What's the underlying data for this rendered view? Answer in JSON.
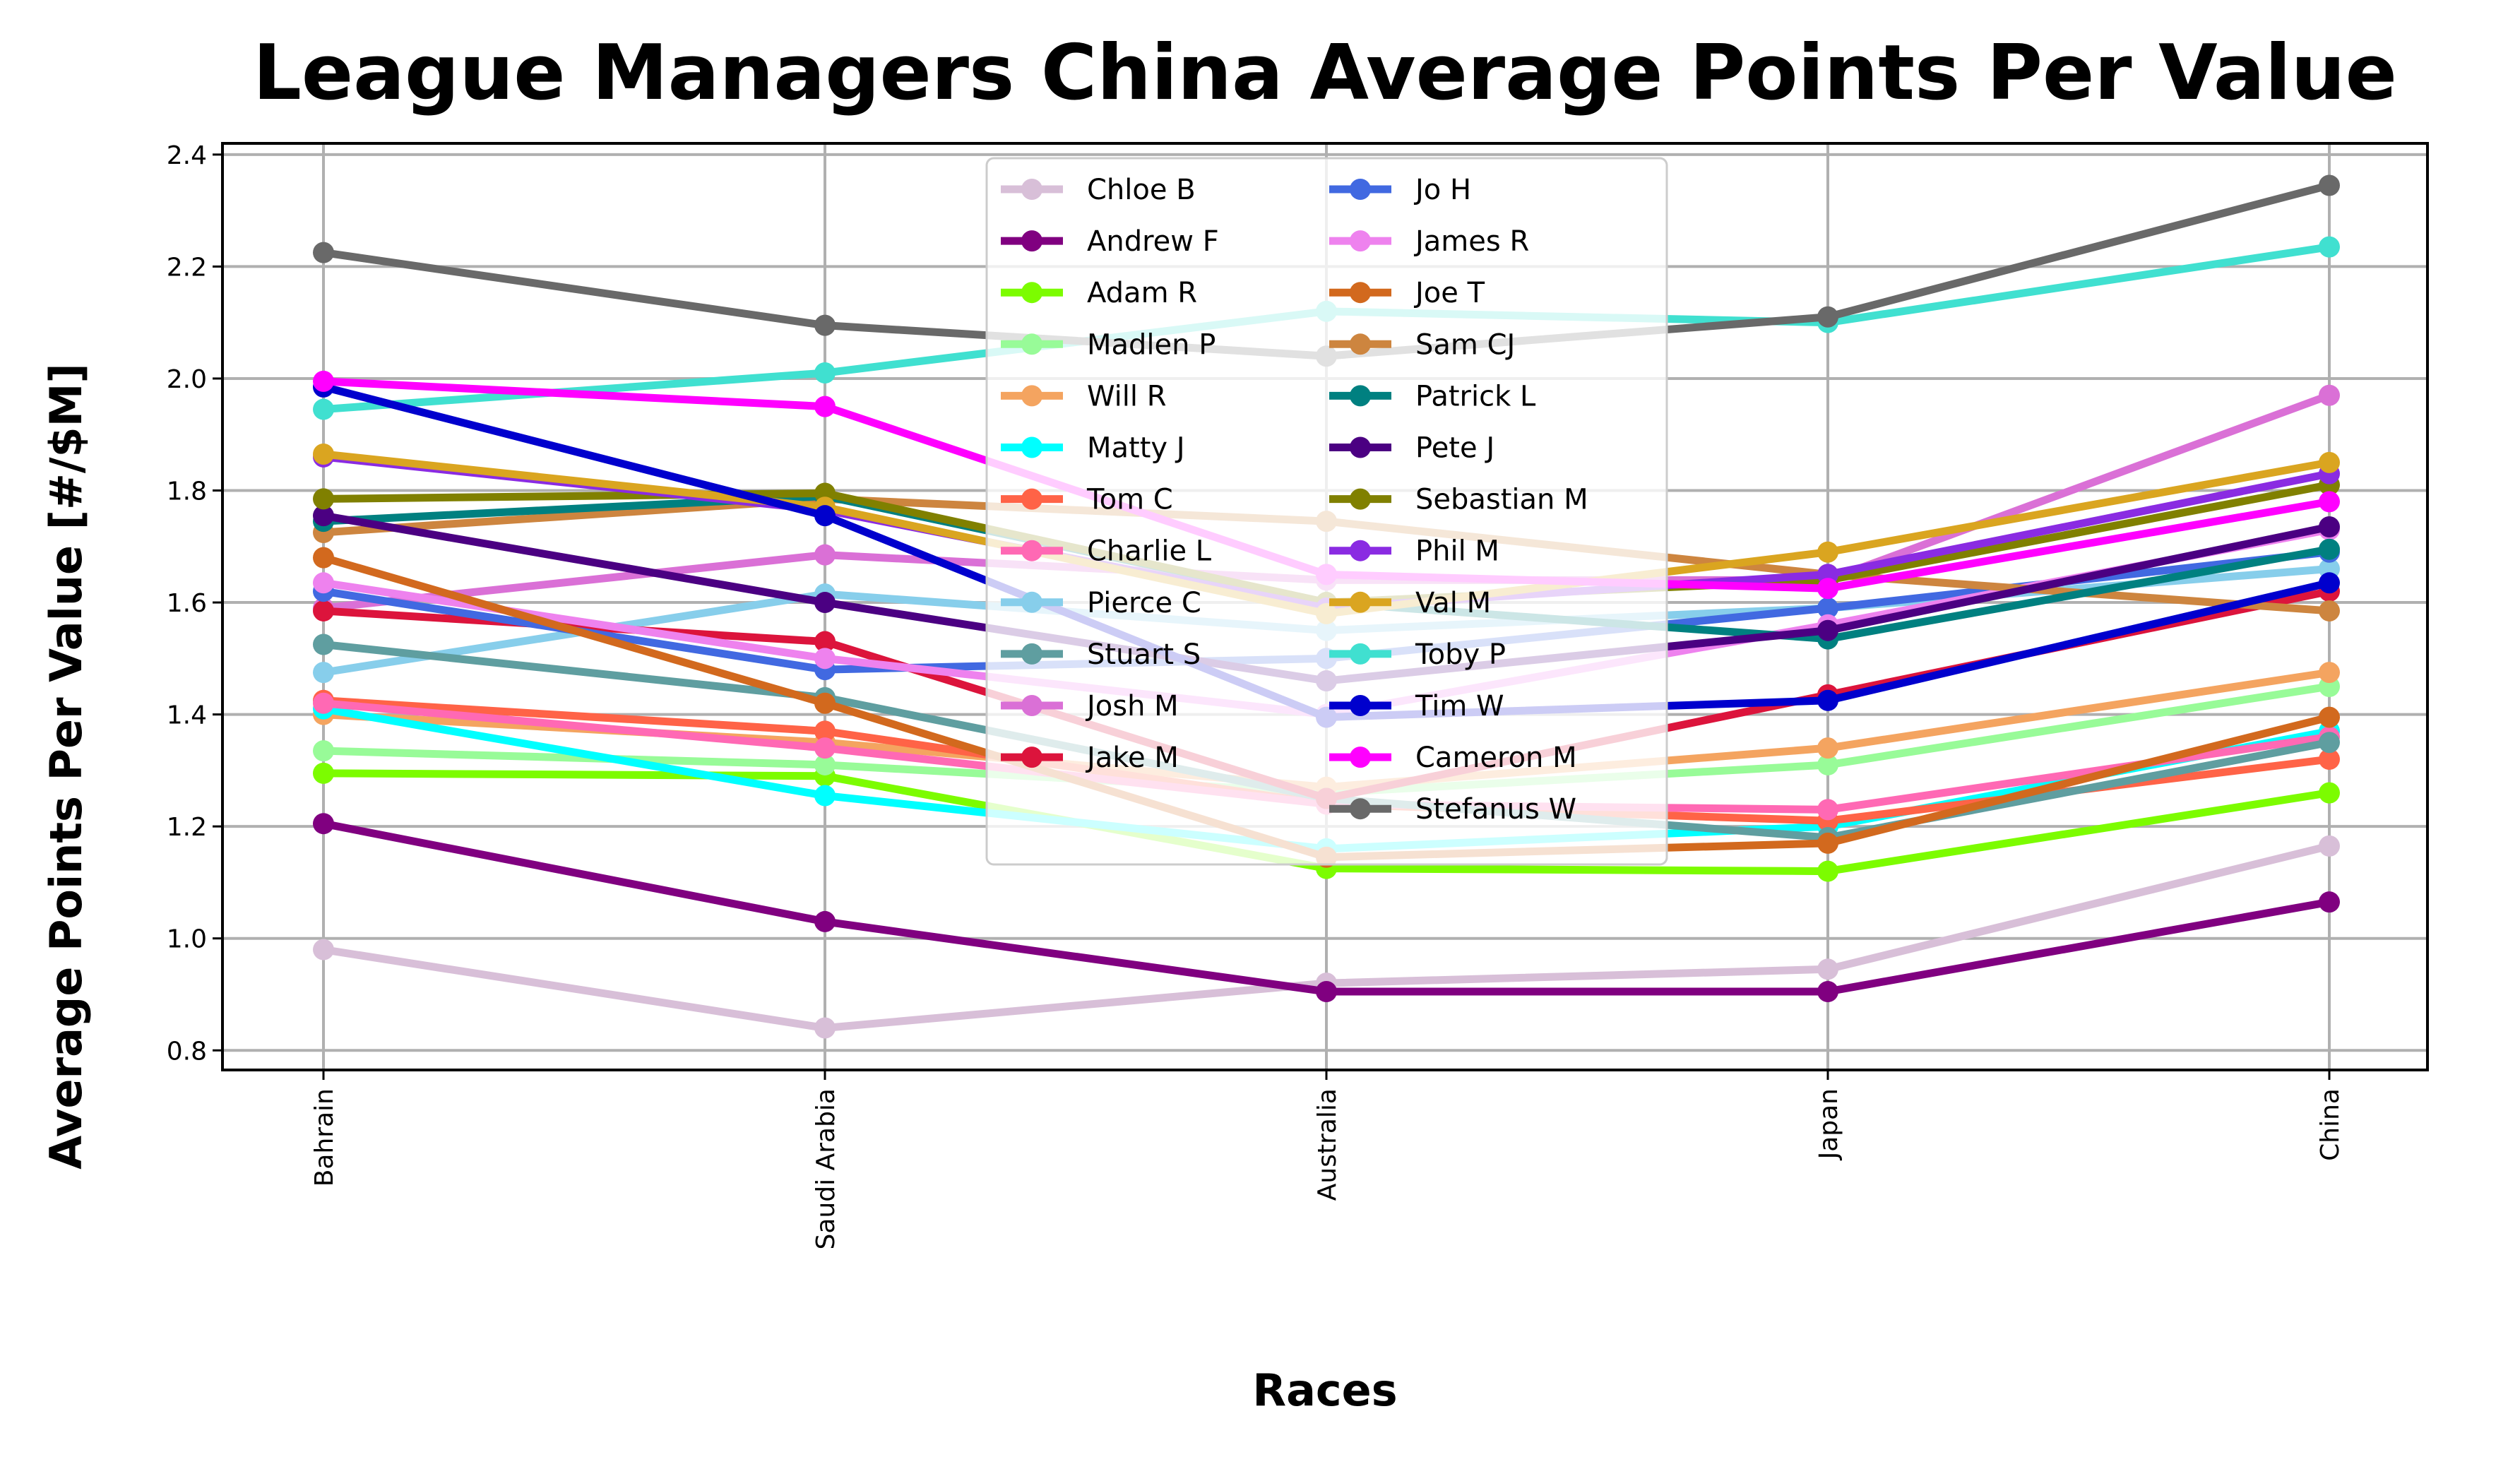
{
  "chart_data": {
    "type": "line",
    "title": "League Managers China Average Points Per Value",
    "xlabel": "Races",
    "ylabel": "Average Points Per Value [#/$M]",
    "categories": [
      "Bahrain",
      "Saudi Arabia",
      "Australia",
      "Japan",
      "China"
    ],
    "ylim": [
      0.765,
      2.42
    ],
    "yticks": [
      0.8,
      1.0,
      1.2,
      1.4,
      1.6,
      1.8,
      2.0,
      2.2,
      2.4
    ],
    "grid": true,
    "legend_position": "upper-center",
    "series": [
      {
        "name": "Chloe B",
        "color": "#d8bfd8",
        "values": [
          0.98,
          0.84,
          0.92,
          0.945,
          1.165
        ]
      },
      {
        "name": "Andrew F",
        "color": "#800080",
        "values": [
          1.205,
          1.03,
          0.905,
          0.905,
          1.065
        ]
      },
      {
        "name": "Adam R",
        "color": "#7cfc00",
        "values": [
          1.295,
          1.29,
          1.125,
          1.12,
          1.26
        ]
      },
      {
        "name": "Madlen P",
        "color": "#98fb98",
        "values": [
          1.335,
          1.31,
          1.26,
          1.31,
          1.45
        ]
      },
      {
        "name": "Will R",
        "color": "#f4a460",
        "values": [
          1.4,
          1.35,
          1.27,
          1.34,
          1.475
        ]
      },
      {
        "name": "Matty J",
        "color": "#00ffff",
        "values": [
          1.41,
          1.255,
          1.16,
          1.2,
          1.37
        ]
      },
      {
        "name": "Tom C",
        "color": "#ff6347",
        "values": [
          1.425,
          1.37,
          1.24,
          1.21,
          1.32
        ]
      },
      {
        "name": "Charlie L",
        "color": "#ff69b4",
        "values": [
          1.42,
          1.34,
          1.24,
          1.23,
          1.36
        ]
      },
      {
        "name": "Pierce C",
        "color": "#87ceeb",
        "values": [
          1.475,
          1.615,
          1.55,
          1.59,
          1.66
        ]
      },
      {
        "name": "Stuart S",
        "color": "#5f9ea0",
        "values": [
          1.525,
          1.43,
          1.25,
          1.18,
          1.35
        ]
      },
      {
        "name": "Josh M",
        "color": "#da70d6",
        "values": [
          1.59,
          1.685,
          1.64,
          1.64,
          1.97
        ]
      },
      {
        "name": "Jake M",
        "color": "#dc143c",
        "values": [
          1.585,
          1.53,
          1.25,
          1.435,
          1.62
        ]
      },
      {
        "name": "Jo H",
        "color": "#4169e1",
        "values": [
          1.62,
          1.48,
          1.5,
          1.59,
          1.69
        ]
      },
      {
        "name": "James R",
        "color": "#ee82ee",
        "values": [
          1.635,
          1.5,
          1.4,
          1.56,
          1.73
        ]
      },
      {
        "name": "Joe T",
        "color": "#d2691e",
        "values": [
          1.68,
          1.42,
          1.145,
          1.17,
          1.395
        ]
      },
      {
        "name": "Sam CJ",
        "color": "#cd853f",
        "values": [
          1.725,
          1.785,
          1.745,
          1.65,
          1.585
        ]
      },
      {
        "name": "Patrick L",
        "color": "#008080",
        "values": [
          1.745,
          1.79,
          1.6,
          1.535,
          1.695
        ]
      },
      {
        "name": "Pete J",
        "color": "#4b0082",
        "values": [
          1.755,
          1.6,
          1.46,
          1.55,
          1.735
        ]
      },
      {
        "name": "Sebastian M",
        "color": "#808000",
        "values": [
          1.785,
          1.795,
          1.6,
          1.64,
          1.81
        ]
      },
      {
        "name": "Phil M",
        "color": "#8a2be2",
        "values": [
          1.86,
          1.765,
          1.59,
          1.65,
          1.83
        ]
      },
      {
        "name": "Val M",
        "color": "#daa520",
        "values": [
          1.865,
          1.77,
          1.58,
          1.69,
          1.85
        ]
      },
      {
        "name": "Toby P",
        "color": "#40e0d0",
        "values": [
          1.945,
          2.01,
          2.12,
          2.1,
          2.235
        ]
      },
      {
        "name": "Tim W",
        "color": "#0000cd",
        "values": [
          1.985,
          1.755,
          1.395,
          1.425,
          1.635
        ]
      },
      {
        "name": "Cameron M",
        "color": "#ff00ff",
        "values": [
          1.995,
          1.95,
          1.65,
          1.625,
          1.78
        ]
      },
      {
        "name": "Stefanus W",
        "color": "#696969",
        "values": [
          2.225,
          2.095,
          2.04,
          2.11,
          2.345
        ]
      }
    ]
  }
}
